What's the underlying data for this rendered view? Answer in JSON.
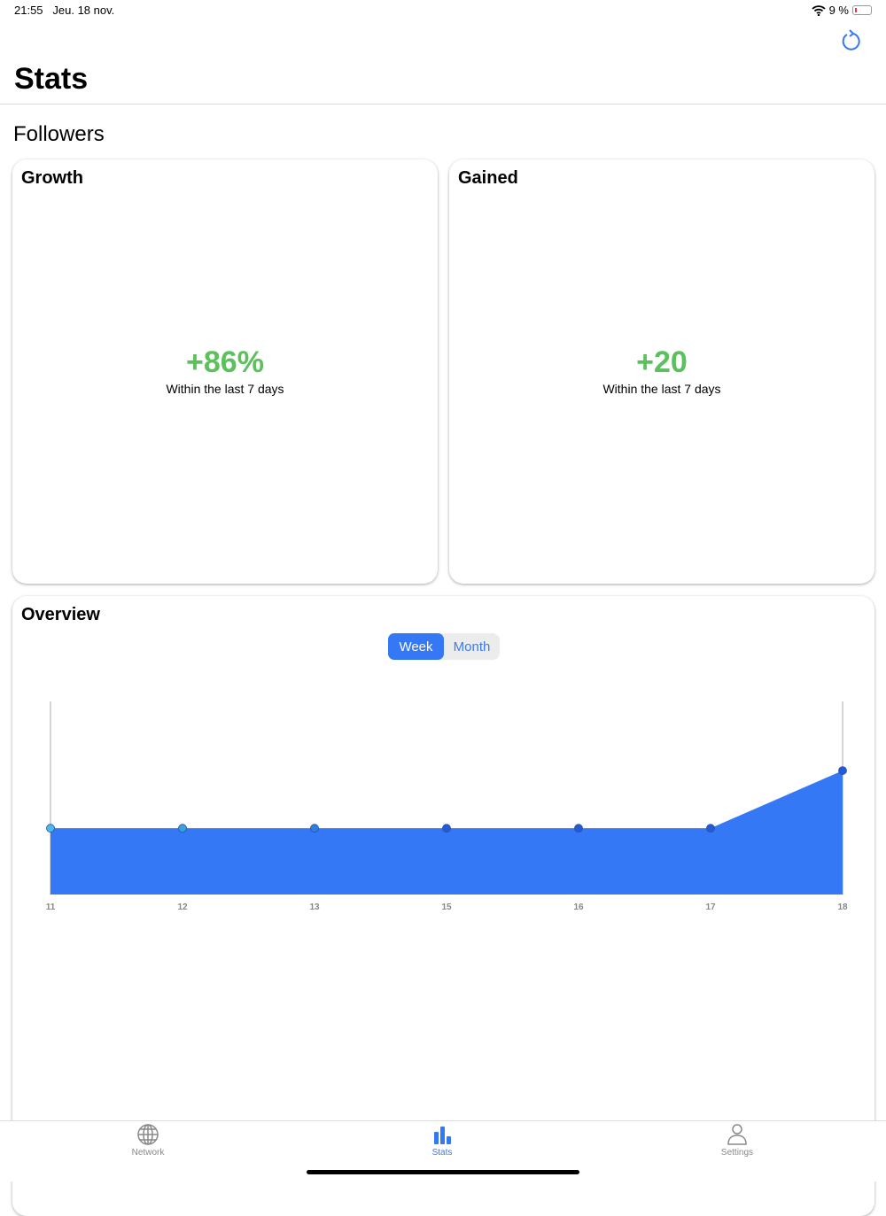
{
  "status_bar": {
    "time": "21:55",
    "date": "Jeu. 18 nov.",
    "battery": "9 %"
  },
  "header": {
    "title": "Stats",
    "refresh_icon": "arrow-clockwise-icon"
  },
  "section_title": "Followers",
  "growth": {
    "title": "Growth",
    "value": "+86%",
    "caption": "Within the last 7 days"
  },
  "gained": {
    "title": "Gained",
    "value": "+20",
    "caption": "Within the last 7 days"
  },
  "overview": {
    "title": "Overview",
    "segments": [
      "Week",
      "Month"
    ],
    "selected": "Week"
  },
  "colors": {
    "accent": "#3478f6",
    "positive": "#5cc05c",
    "fill": "#3478f6"
  },
  "chart_data": {
    "type": "area",
    "categories": [
      "11",
      "12",
      "13",
      "15",
      "16",
      "17",
      "18"
    ],
    "values": [
      23,
      23,
      23,
      23,
      23,
      23,
      43
    ],
    "ylim": [
      0,
      67
    ],
    "grid": false,
    "point_colors": [
      "#4cb8f0",
      "#3aa0e0",
      "#2f7fe0",
      "#2459d8",
      "#2459d8",
      "#2459d8",
      "#2459d8"
    ]
  },
  "tabs": [
    {
      "label": "Network",
      "icon": "globe-icon"
    },
    {
      "label": "Stats",
      "icon": "bar-chart-icon",
      "active": true
    },
    {
      "label": "Settings",
      "icon": "person-icon"
    }
  ]
}
